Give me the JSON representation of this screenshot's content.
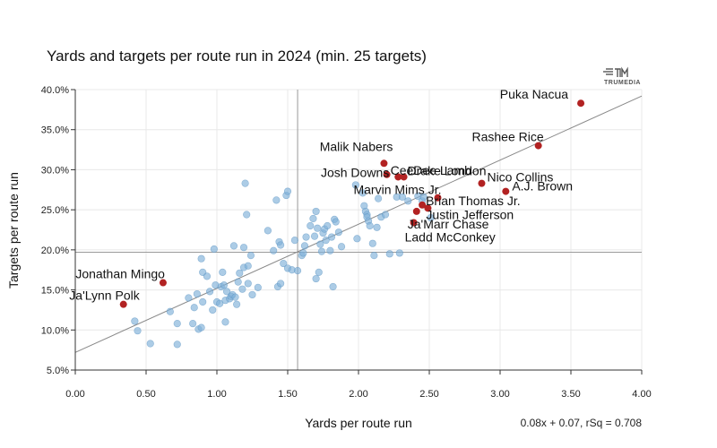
{
  "chart_data": {
    "type": "scatter",
    "title": "Yards and targets per route run in 2024 (min. 25 targets)",
    "xlabel": "Yards per route run",
    "ylabel": "Targets per route run",
    "xlim": [
      0,
      4
    ],
    "ylim": [
      0.05,
      0.4
    ],
    "x_ticks": [
      "0.00",
      "0.50",
      "1.00",
      "1.50",
      "2.00",
      "2.50",
      "3.00",
      "3.50",
      "4.00"
    ],
    "y_ticks": [
      "5.0%",
      "10.0%",
      "15.0%",
      "20.0%",
      "25.0%",
      "30.0%",
      "35.0%",
      "40.0%"
    ],
    "mean_x": 1.57,
    "mean_y": 0.197,
    "fit": {
      "slope": 0.08,
      "intercept": 0.072,
      "label": "0.08x + 0.07, rSq = 0.708"
    },
    "grid": true,
    "brand": "TRUMEDIA",
    "colors": {
      "base_point": "#7fb0d8",
      "highlight_point": "#b22222",
      "fit_line": "#888888",
      "ref_line": "#999999"
    },
    "highlighted": [
      {
        "name": "Puka Nacua",
        "x": 3.57,
        "y": 0.383
      },
      {
        "name": "Rashee Rice",
        "x": 3.27,
        "y": 0.33
      },
      {
        "name": "Malik Nabers",
        "x": 2.18,
        "y": 0.308
      },
      {
        "name": "CeeDee Lamb",
        "x": 2.2,
        "y": 0.294
      },
      {
        "name": "Josh Downs",
        "x": 2.28,
        "y": 0.291
      },
      {
        "name": "Drake London",
        "x": 2.32,
        "y": 0.291
      },
      {
        "name": "Nico Collins",
        "x": 2.87,
        "y": 0.283
      },
      {
        "name": "A.J. Brown",
        "x": 3.04,
        "y": 0.273
      },
      {
        "name": "Marvin Mims Jr.",
        "x": 2.56,
        "y": 0.265
      },
      {
        "name": "Brian Thomas Jr.",
        "x": 2.45,
        "y": 0.256
      },
      {
        "name": "Justin Jefferson",
        "x": 2.49,
        "y": 0.252
      },
      {
        "name": "Ja'Marr Chase",
        "x": 2.41,
        "y": 0.248
      },
      {
        "name": "Ladd McConkey",
        "x": 2.39,
        "y": 0.234
      },
      {
        "name": "Jonathan Mingo",
        "x": 0.62,
        "y": 0.159
      },
      {
        "name": "Ja'Lynn Polk",
        "x": 0.34,
        "y": 0.132
      }
    ],
    "points": [
      [
        0.42,
        0.111
      ],
      [
        0.44,
        0.099
      ],
      [
        0.53,
        0.083
      ],
      [
        0.67,
        0.123
      ],
      [
        0.72,
        0.108
      ],
      [
        0.72,
        0.082
      ],
      [
        0.8,
        0.14
      ],
      [
        0.83,
        0.108
      ],
      [
        0.84,
        0.128
      ],
      [
        0.86,
        0.145
      ],
      [
        0.87,
        0.101
      ],
      [
        0.89,
        0.103
      ],
      [
        0.89,
        0.189
      ],
      [
        0.9,
        0.172
      ],
      [
        0.9,
        0.135
      ],
      [
        0.93,
        0.167
      ],
      [
        0.95,
        0.148
      ],
      [
        0.97,
        0.125
      ],
      [
        0.98,
        0.201
      ],
      [
        0.99,
        0.156
      ],
      [
        1.0,
        0.135
      ],
      [
        1.02,
        0.133
      ],
      [
        1.03,
        0.154
      ],
      [
        1.04,
        0.172
      ],
      [
        1.05,
        0.156
      ],
      [
        1.06,
        0.137
      ],
      [
        1.06,
        0.11
      ],
      [
        1.07,
        0.148
      ],
      [
        1.09,
        0.139
      ],
      [
        1.1,
        0.142
      ],
      [
        1.11,
        0.144
      ],
      [
        1.12,
        0.205
      ],
      [
        1.13,
        0.141
      ],
      [
        1.14,
        0.132
      ],
      [
        1.15,
        0.16
      ],
      [
        1.16,
        0.171
      ],
      [
        1.18,
        0.151
      ],
      [
        1.19,
        0.203
      ],
      [
        1.19,
        0.178
      ],
      [
        1.2,
        0.283
      ],
      [
        1.21,
        0.244
      ],
      [
        1.22,
        0.158
      ],
      [
        1.22,
        0.18
      ],
      [
        1.24,
        0.193
      ],
      [
        1.25,
        0.144
      ],
      [
        1.29,
        0.153
      ],
      [
        1.36,
        0.224
      ],
      [
        1.4,
        0.199
      ],
      [
        1.42,
        0.262
      ],
      [
        1.43,
        0.154
      ],
      [
        1.44,
        0.21
      ],
      [
        1.45,
        0.158
      ],
      [
        1.45,
        0.206
      ],
      [
        1.47,
        0.183
      ],
      [
        1.49,
        0.268
      ],
      [
        1.5,
        0.177
      ],
      [
        1.5,
        0.273
      ],
      [
        1.53,
        0.175
      ],
      [
        1.55,
        0.212
      ],
      [
        1.57,
        0.174
      ],
      [
        1.6,
        0.193
      ],
      [
        1.61,
        0.196
      ],
      [
        1.62,
        0.205
      ],
      [
        1.63,
        0.216
      ],
      [
        1.66,
        0.23
      ],
      [
        1.68,
        0.239
      ],
      [
        1.69,
        0.217
      ],
      [
        1.7,
        0.164
      ],
      [
        1.7,
        0.248
      ],
      [
        1.71,
        0.227
      ],
      [
        1.72,
        0.172
      ],
      [
        1.73,
        0.207
      ],
      [
        1.74,
        0.198
      ],
      [
        1.75,
        0.221
      ],
      [
        1.76,
        0.226
      ],
      [
        1.77,
        0.212
      ],
      [
        1.78,
        0.23
      ],
      [
        1.8,
        0.199
      ],
      [
        1.81,
        0.216
      ],
      [
        1.82,
        0.154
      ],
      [
        1.83,
        0.238
      ],
      [
        1.84,
        0.235
      ],
      [
        1.86,
        0.222
      ],
      [
        1.88,
        0.204
      ],
      [
        1.98,
        0.281
      ],
      [
        1.99,
        0.214
      ],
      [
        2.03,
        0.271
      ],
      [
        2.04,
        0.255
      ],
      [
        2.05,
        0.248
      ],
      [
        2.06,
        0.244
      ],
      [
        2.06,
        0.241
      ],
      [
        2.07,
        0.236
      ],
      [
        2.08,
        0.23
      ],
      [
        2.1,
        0.208
      ],
      [
        2.11,
        0.193
      ],
      [
        2.13,
        0.228
      ],
      [
        2.14,
        0.264
      ],
      [
        2.16,
        0.241
      ],
      [
        2.19,
        0.244
      ],
      [
        2.22,
        0.195
      ],
      [
        2.27,
        0.266
      ],
      [
        2.29,
        0.196
      ],
      [
        2.31,
        0.266
      ],
      [
        2.35,
        0.261
      ],
      [
        2.42,
        0.267
      ],
      [
        2.45,
        0.261
      ],
      [
        2.46,
        0.266
      ],
      [
        2.51,
        0.24
      ]
    ]
  }
}
